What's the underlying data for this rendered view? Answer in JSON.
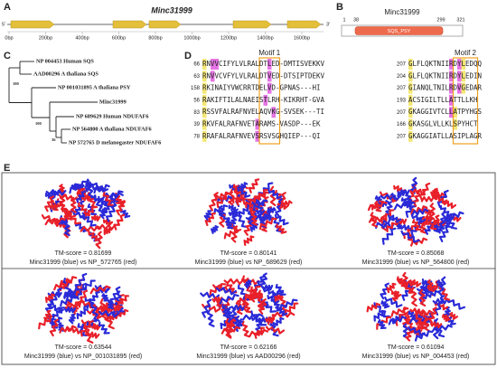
{
  "panel_a": {
    "label": "A",
    "title": "Minc31999",
    "end5": "5'",
    "end3": "3'",
    "scale": [
      "0bp",
      "200bp",
      "400bp",
      "600bp",
      "800bp",
      "1000bp",
      "1200bp",
      "1400bp",
      "1600bp"
    ]
  },
  "panel_b": {
    "label": "B",
    "title": "Minc31999",
    "positions": [
      "1",
      "38",
      "299",
      "321"
    ],
    "domain": "SQS_PSY"
  },
  "panel_c": {
    "label": "C",
    "taxa": [
      "NP 004453 Human SQS",
      "AAD00296 A thaliana SQS",
      "NP 001031895 A thaliana PSY",
      "Minc31999",
      "NP 689629 Human NDUFAF6",
      "NP 564800 A thaliana NDUFAF6",
      "NP 572765 D melanogaster NDUFAF6"
    ],
    "bootstrap": [
      "100",
      "100",
      "36"
    ]
  },
  "panel_d": {
    "label": "D",
    "motifs": [
      "Motif 1",
      "Motif 2"
    ],
    "left": [
      {
        "num": "66",
        "seq": "RNVVCIFYLVLRALDTLED-DMTISVEKKV"
      },
      {
        "num": "63",
        "seq": "RNVVCVFYLVLRALDTVED-DTSIPTDEKV"
      },
      {
        "num": "158",
        "seq": "RKINAIYVWCRRTDELVD-GPNAS---HI"
      },
      {
        "num": "56",
        "seq": "RAKIFTILALNAEISTLRH-KIKRHT-GVA"
      },
      {
        "num": "83",
        "seq": "RSSVFALRAFNVELAQVKG-SVSEK---TI"
      },
      {
        "num": "39",
        "seq": "RKVFALRAFNVETARAMS-VASDP---EK"
      },
      {
        "num": "78",
        "seq": "RRAFALRAFNVEVSRSVSGHQIEP---QI"
      }
    ],
    "right": [
      {
        "num": "207",
        "seq": "GLFLQKTNIIRDYLEDQQ"
      },
      {
        "num": "204",
        "seq": "GLFLQKTNIIRDYLEDIN"
      },
      {
        "num": "207",
        "seq": "GIANQLTNILRDVGEDAR"
      },
      {
        "num": "193",
        "seq": "ACSIGILTLLATTLLKH"
      },
      {
        "num": "207",
        "seq": "GKAGGIVTCLLATPYHGS"
      },
      {
        "num": "166",
        "seq": "GKASGLVLLKLSPYHCT"
      },
      {
        "num": "207",
        "seq": "GKAGGIATLLASIPLAGR"
      }
    ]
  },
  "panel_e": {
    "label": "E",
    "models": [
      {
        "tm": "TM-score = 0.81699",
        "caption": "Minc31999 (blue) vs NP_572765 (red)"
      },
      {
        "tm": "TM-score = 0.80141",
        "caption": "Minc31999 (blue) vs NP_689629 (red)"
      },
      {
        "tm": "TM-score = 0.85068",
        "caption": "Minc31999 (blue) vs NP_564800 (red)"
      },
      {
        "tm": "TM-score = 0.63544",
        "caption": "Minc31999 (blue) vs NP_001031895 (red)"
      },
      {
        "tm": "TM-score = 0.62166",
        "caption": "Minc31999 (blue) vs AAD00296 (red)"
      },
      {
        "tm": "TM-score = 0.61094",
        "caption": "Minc31999 (blue) vs NP_004453 (red)"
      }
    ]
  }
}
